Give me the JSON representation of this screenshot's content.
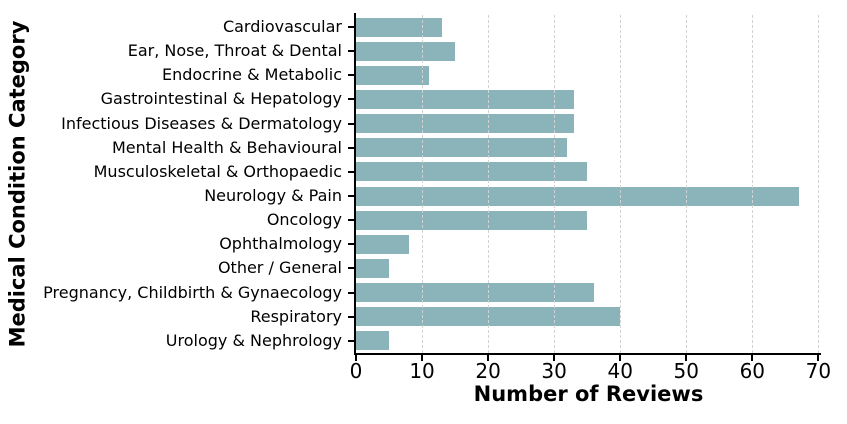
{
  "chart_data": {
    "type": "bar",
    "orientation": "horizontal",
    "categories": [
      "Cardiovascular",
      "Ear, Nose, Throat & Dental",
      "Endocrine & Metabolic",
      "Gastrointestinal & Hepatology",
      "Infectious Diseases & Dermatology",
      "Mental Health & Behavioural",
      "Musculoskeletal & Orthopaedic",
      "Neurology & Pain",
      "Oncology",
      "Ophthalmology",
      "Other / General",
      "Pregnancy, Childbirth & Gynaecology",
      "Respiratory",
      "Urology & Nephrology"
    ],
    "values": [
      13,
      15,
      11,
      33,
      33,
      32,
      35,
      67,
      35,
      8,
      5,
      36,
      40,
      5
    ],
    "xlabel": "Number of Reviews",
    "ylabel": "Medical Condition Category",
    "xlim": [
      0,
      70.4
    ],
    "xticks": [
      0,
      10,
      20,
      30,
      40,
      50,
      60,
      70
    ],
    "grid": "vertical-dashed",
    "legend": "none",
    "colors": {
      "bar": "#8bb4ba",
      "gridline": "#d2d2d2",
      "spine": "#000000",
      "text": "#000000",
      "background": "#ffffff"
    }
  }
}
